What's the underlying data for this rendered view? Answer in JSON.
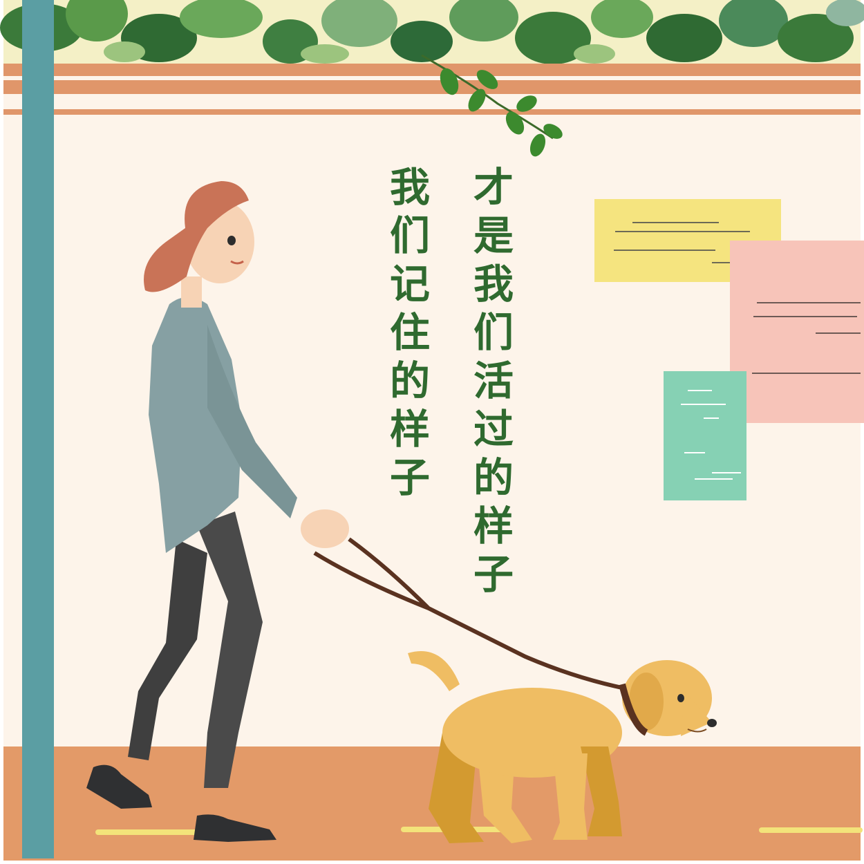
{
  "poem": {
    "line_1": "才是我们活过的样子",
    "line_2": "我们记住的样子"
  },
  "colors": {
    "wall": "#fdf4ea",
    "floor": "#e39a68",
    "shelf": "#e0966a",
    "pillar": "#5b9ea3",
    "text": "#2f6a2f",
    "note_yellow": "#f5e47f",
    "note_pink": "#f7c4b9",
    "note_green": "#86d1b4",
    "dog": "#efbd63",
    "shirt": "#86a0a3",
    "hair": "#c97357"
  }
}
